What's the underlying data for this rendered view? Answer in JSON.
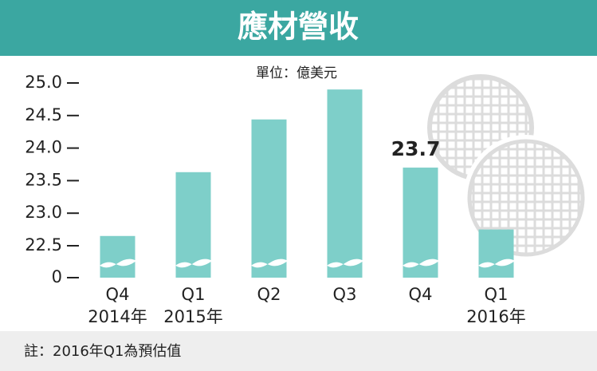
{
  "chart_data": {
    "type": "bar",
    "title": "應材營收",
    "unit": "單位：億美元",
    "categories": [
      "Q4",
      "Q1",
      "Q2",
      "Q3",
      "Q4",
      "Q1"
    ],
    "category_years": [
      "2014年",
      "2015年",
      null,
      null,
      null,
      "2016年"
    ],
    "values": [
      22.65,
      23.63,
      24.44,
      24.9,
      23.7,
      22.75
    ],
    "data_labels": [
      false,
      false,
      false,
      false,
      true,
      false
    ],
    "color": "#7ecfc9",
    "ylim": [
      0,
      25.0
    ],
    "axis_break": [
      0,
      22.5
    ],
    "yticks": [
      0,
      22.5,
      {
        "value": 23.0,
        "label": "23.0"
      },
      23.5,
      {
        "value": 24.0,
        "label": "24.0"
      },
      24.5,
      {
        "value": 25.0,
        "label": "25.0"
      }
    ],
    "note": "註：2016年Q1為預估值"
  }
}
